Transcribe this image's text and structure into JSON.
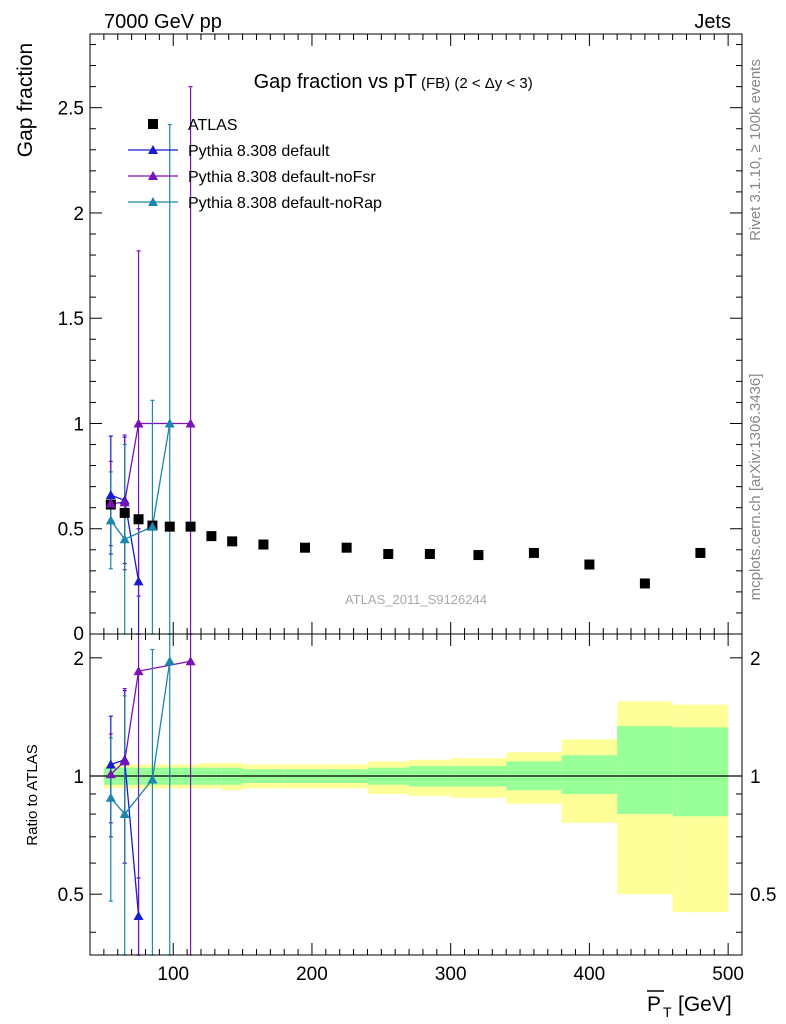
{
  "header": {
    "left": "7000 GeV pp",
    "right": "Jets"
  },
  "side_text": {
    "rivet": "Rivet 3.1.10, ≥ 100k events",
    "mcplots": "mcplots.cern.ch [arXiv:1306.3436]"
  },
  "colors": {
    "data": "#000000",
    "default": "#1a1ad0",
    "noFsr": "#7a12b8",
    "noRap": "#1a86ad",
    "band_inner": "#99ff99",
    "band_outer": "#ffff99"
  },
  "chart_data": [
    {
      "type": "scatter",
      "title": "Gap fraction vs pT (FB) (2 < Δy < 3)",
      "title_main": "Gap fraction vs pT",
      "title_small": "(FB) (2 < Δy < 3)",
      "ylabel": "Gap fraction",
      "watermark": "ATLAS_2011_S9126244",
      "xlim": [
        40,
        510
      ],
      "ylim": [
        0,
        2.85
      ],
      "y_ticks": [
        "0.5",
        "1",
        "1.5",
        "2",
        "2.5"
      ],
      "y_tick_values": [
        0.5,
        1,
        1.5,
        2,
        2.5
      ],
      "legend_position": "top-left",
      "legend": [
        "ATLAS",
        "Pythia 8.308 default",
        "Pythia 8.308 default-noFsr",
        "Pythia 8.308 default-noRap"
      ],
      "data": {
        "name": "ATLAS",
        "x": [
          55,
          65,
          75,
          85,
          97.5,
          112.5,
          127.5,
          142.5,
          165,
          195,
          225,
          255,
          285,
          320,
          360,
          400,
          440,
          480
        ],
        "y": [
          0.615,
          0.575,
          0.545,
          0.515,
          0.51,
          0.51,
          0.465,
          0.44,
          0.425,
          0.41,
          0.41,
          0.38,
          0.38,
          0.375,
          0.385,
          0.33,
          0.24,
          0.385
        ]
      },
      "series": [
        {
          "name": "Pythia 8.308 default",
          "x": [
            55,
            65,
            75
          ],
          "y": [
            0.66,
            0.635,
            0.25
          ],
          "err": [
            0.28,
            0.3,
            0.25
          ]
        },
        {
          "name": "Pythia 8.308 default-noFsr",
          "x": [
            55,
            65,
            75,
            112.5
          ],
          "y": [
            0.62,
            0.625,
            1.0,
            1.0
          ],
          "err": [
            0.2,
            0.32,
            0.82,
            1.6
          ]
        },
        {
          "name": "Pythia 8.308 default-noRap",
          "x": [
            55,
            65,
            85,
            97.5
          ],
          "y": [
            0.54,
            0.45,
            0.51,
            1.0
          ],
          "err": [
            0.23,
            0.45,
            0.6,
            1.42
          ]
        }
      ]
    },
    {
      "type": "scatter",
      "ylabel": "Ratio to ATLAS",
      "xlabel_main": "P",
      "xlabel_sub": "T",
      "xlabel_unit": "[GeV]",
      "xlim": [
        40,
        510
      ],
      "ylim": [
        0.35,
        2.3
      ],
      "x_ticks": [
        "100",
        "200",
        "300",
        "400",
        "500"
      ],
      "x_tick_values": [
        100,
        200,
        300,
        400,
        500
      ],
      "y_ticks": [
        "0.5",
        "1",
        "2"
      ],
      "y_tick_values": [
        0.5,
        1,
        2
      ],
      "bands": {
        "edges": [
          50,
          60,
          70,
          80,
          90,
          105,
          120,
          135,
          150,
          180,
          210,
          240,
          270,
          300,
          340,
          380,
          420,
          460,
          500
        ],
        "inner_lo": [
          0.95,
          0.95,
          0.95,
          0.95,
          0.95,
          0.95,
          0.95,
          0.95,
          0.96,
          0.96,
          0.96,
          0.95,
          0.94,
          0.94,
          0.92,
          0.9,
          0.8,
          0.79
        ],
        "inner_hi": [
          1.05,
          1.05,
          1.05,
          1.05,
          1.05,
          1.05,
          1.05,
          1.05,
          1.04,
          1.04,
          1.04,
          1.05,
          1.06,
          1.06,
          1.09,
          1.13,
          1.34,
          1.33
        ],
        "outer_lo": [
          0.93,
          0.93,
          0.93,
          0.93,
          0.93,
          0.93,
          0.93,
          0.92,
          0.93,
          0.93,
          0.93,
          0.9,
          0.89,
          0.88,
          0.85,
          0.76,
          0.5,
          0.45
        ],
        "outer_hi": [
          1.07,
          1.07,
          1.07,
          1.07,
          1.07,
          1.07,
          1.08,
          1.08,
          1.07,
          1.07,
          1.07,
          1.09,
          1.1,
          1.11,
          1.15,
          1.24,
          1.55,
          1.52
        ]
      },
      "series": [
        {
          "name": "Pythia 8.308 default",
          "x": [
            55,
            65,
            75
          ],
          "y": [
            1.07,
            1.1,
            0.44
          ],
          "lo": [
            0.7,
            0.6,
            0.3
          ],
          "hi": [
            1.42,
            1.65,
            0.55
          ]
        },
        {
          "name": "Pythia 8.308 default-noFsr",
          "x": [
            55,
            65,
            75,
            112.5
          ],
          "y": [
            1.01,
            1.09,
            1.85,
            1.96
          ],
          "lo": [
            0.76,
            0.6,
            0.3,
            0.3
          ],
          "hi": [
            1.28,
            1.67,
            2.3,
            2.3
          ]
        },
        {
          "name": "Pythia 8.308 default-noRap",
          "x": [
            55,
            65,
            85,
            97.5
          ],
          "y": [
            0.88,
            0.8,
            0.98,
            1.96
          ],
          "lo": [
            0.48,
            0.3,
            0.3,
            0.3
          ],
          "hi": [
            1.25,
            1.6,
            2.1,
            2.3
          ]
        }
      ]
    }
  ]
}
